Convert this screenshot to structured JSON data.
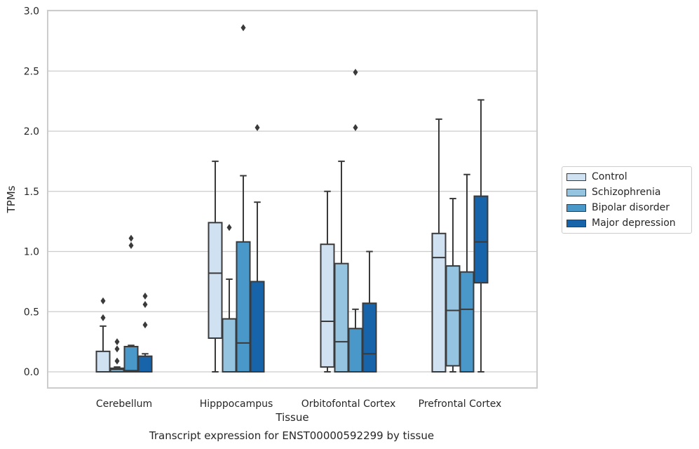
{
  "caption": "Transcript expression for ENST00000592299 by tissue",
  "chart_data": {
    "type": "boxplot",
    "title": "",
    "xlabel": "Tissue",
    "ylabel": "TPMs",
    "ylim": [
      -0.13,
      3.0
    ],
    "yticks": [
      "0.0",
      "0.5",
      "1.0",
      "1.5",
      "2.0",
      "2.5",
      "3.0"
    ],
    "ytick_values": [
      0,
      0.5,
      1.0,
      1.5,
      2.0,
      2.5,
      3.0
    ],
    "grid": "horizontal",
    "legend_position": "right",
    "categories": [
      "Cerebellum",
      "Hipppocampus",
      "Orbitofontal Cortex",
      "Prefrontal Cortex"
    ],
    "series": [
      {
        "name": "Control",
        "color": "#d0e1f2",
        "boxes": [
          {
            "whislo": 0.0,
            "q1": 0.0,
            "med": 0.0,
            "q3": 0.17,
            "whishi": 0.38,
            "fliers": [
              0.45,
              0.59
            ]
          },
          {
            "whislo": 0.0,
            "q1": 0.28,
            "med": 0.82,
            "q3": 1.24,
            "whishi": 1.75,
            "fliers": []
          },
          {
            "whislo": 0.0,
            "q1": 0.04,
            "med": 0.42,
            "q3": 1.06,
            "whishi": 1.5,
            "fliers": []
          },
          {
            "whislo": 0.0,
            "q1": 0.0,
            "med": 0.95,
            "q3": 1.15,
            "whishi": 2.1,
            "fliers": []
          }
        ]
      },
      {
        "name": "Schizophrenia",
        "color": "#94c4df",
        "boxes": [
          {
            "whislo": 0.0,
            "q1": 0.0,
            "med": 0.02,
            "q3": 0.03,
            "whishi": 0.04,
            "fliers": [
              0.09,
              0.19,
              0.25
            ]
          },
          {
            "whislo": 0.0,
            "q1": 0.0,
            "med": 0.44,
            "q3": 0.44,
            "whishi": 0.77,
            "fliers": [
              1.2
            ]
          },
          {
            "whislo": 0.0,
            "q1": 0.0,
            "med": 0.25,
            "q3": 0.9,
            "whishi": 1.75,
            "fliers": []
          },
          {
            "whislo": 0.0,
            "q1": 0.05,
            "med": 0.51,
            "q3": 0.88,
            "whishi": 1.44,
            "fliers": []
          }
        ]
      },
      {
        "name": "Bipolar disorder",
        "color": "#4a98c9",
        "boxes": [
          {
            "whislo": 0.0,
            "q1": 0.0,
            "med": 0.01,
            "q3": 0.21,
            "whishi": 0.22,
            "fliers": [
              1.05,
              1.11
            ]
          },
          {
            "whislo": 0.0,
            "q1": 0.0,
            "med": 0.24,
            "q3": 1.08,
            "whishi": 1.63,
            "fliers": [
              2.86
            ]
          },
          {
            "whislo": 0.0,
            "q1": 0.0,
            "med": 0.0,
            "q3": 0.36,
            "whishi": 0.52,
            "fliers": [
              2.03,
              2.49
            ]
          },
          {
            "whislo": 0.0,
            "q1": 0.0,
            "med": 0.52,
            "q3": 0.83,
            "whishi": 1.64,
            "fliers": []
          }
        ]
      },
      {
        "name": "Major depression",
        "color": "#1764ab",
        "boxes": [
          {
            "whislo": 0.0,
            "q1": 0.0,
            "med": 0.0,
            "q3": 0.13,
            "whishi": 0.15,
            "fliers": [
              0.39,
              0.56,
              0.63
            ]
          },
          {
            "whislo": 0.0,
            "q1": 0.0,
            "med": 0.0,
            "q3": 0.75,
            "whishi": 1.41,
            "fliers": [
              2.03
            ]
          },
          {
            "whislo": 0.0,
            "q1": 0.0,
            "med": 0.15,
            "q3": 0.57,
            "whishi": 1.0,
            "fliers": []
          },
          {
            "whislo": 0.0,
            "q1": 0.74,
            "med": 1.08,
            "q3": 1.46,
            "whishi": 2.26,
            "fliers": []
          }
        ]
      }
    ]
  }
}
